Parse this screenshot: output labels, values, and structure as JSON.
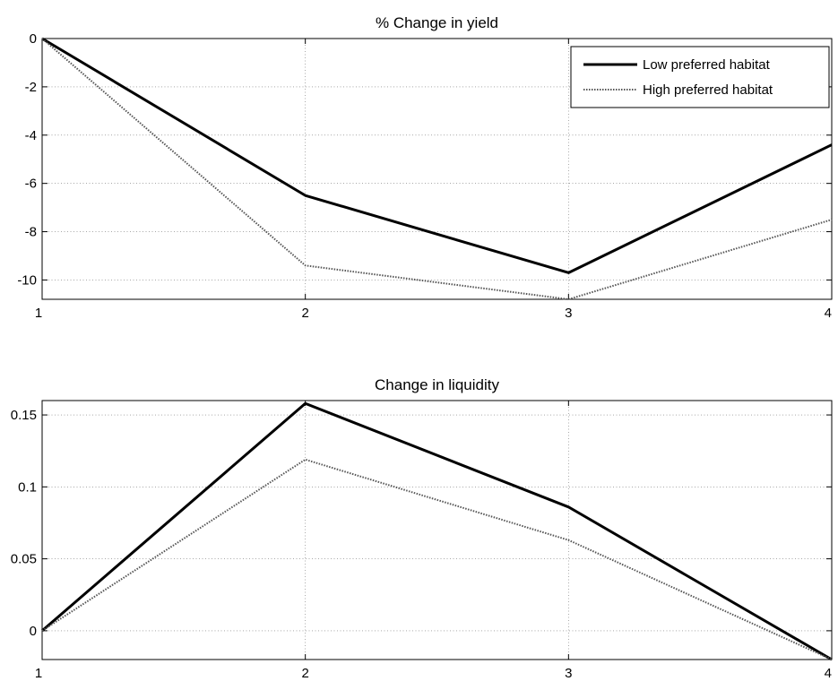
{
  "chart_data": [
    {
      "type": "line",
      "title": "% Change in yield",
      "xlabel": "",
      "ylabel": "",
      "x": [
        1,
        2,
        3,
        4
      ],
      "xticks": [
        "1",
        "2",
        "3",
        "4"
      ],
      "xlim": [
        1,
        4
      ],
      "ylim": [
        -10.8,
        0
      ],
      "yticks": [
        "0",
        "-2",
        "-4",
        "-6",
        "-8",
        "-10"
      ],
      "ytick_values": [
        0,
        -2,
        -4,
        -6,
        -8,
        -10
      ],
      "grid": true,
      "legend": {
        "location": "top-right"
      },
      "series": [
        {
          "name": "Low preferred habitat",
          "style": "solid",
          "color": "#000000",
          "values": [
            0,
            -6.5,
            -9.7,
            -4.4
          ]
        },
        {
          "name": "High preferred habitat",
          "style": "dotted",
          "color": "#555555",
          "values": [
            0,
            -9.4,
            -10.8,
            -7.5
          ]
        }
      ]
    },
    {
      "type": "line",
      "title": "Change in liquidity",
      "xlabel": "",
      "ylabel": "",
      "x": [
        1,
        2,
        3,
        4
      ],
      "xticks": [
        "1",
        "2",
        "3",
        "4"
      ],
      "xlim": [
        1,
        4
      ],
      "ylim": [
        -0.02,
        0.16
      ],
      "yticks": [
        "0.15",
        "0.1",
        "0.05",
        "0"
      ],
      "ytick_values": [
        0.15,
        0.1,
        0.05,
        0
      ],
      "grid": true,
      "series": [
        {
          "style": "solid",
          "color": "#000000",
          "values": [
            0,
            0.158,
            0.086,
            -0.02
          ]
        },
        {
          "style": "dotted",
          "color": "#555555",
          "values": [
            0,
            0.119,
            0.063,
            -0.02
          ]
        }
      ]
    }
  ]
}
